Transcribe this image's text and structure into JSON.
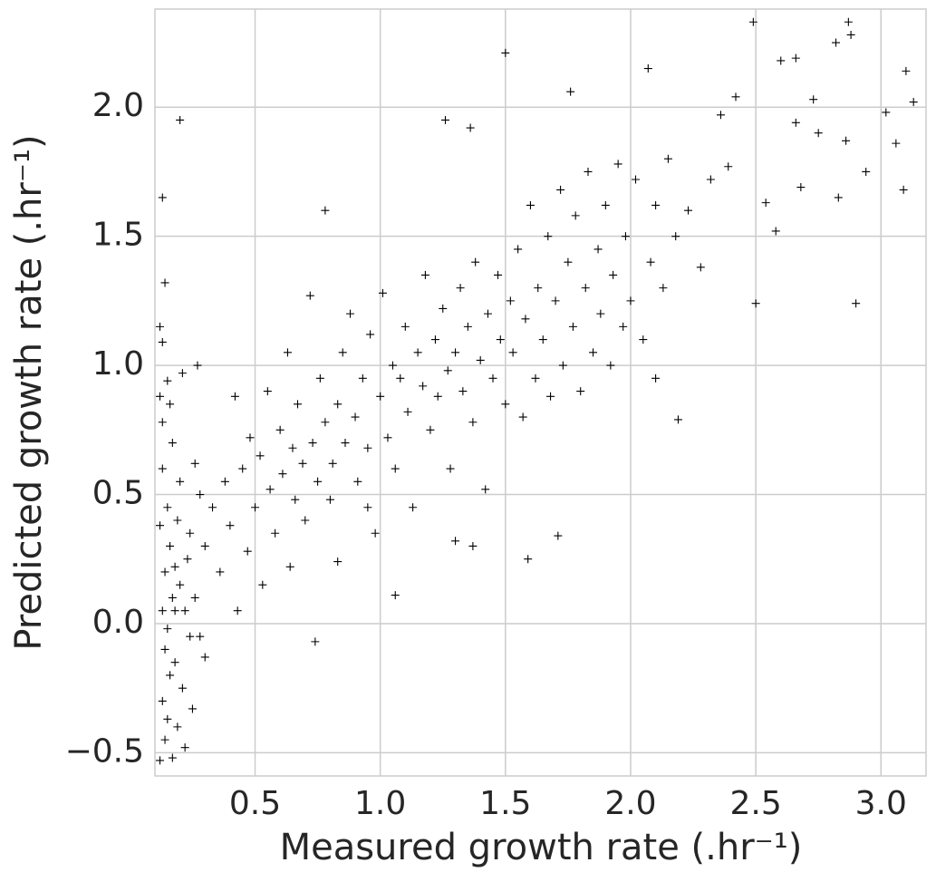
{
  "chart_data": {
    "type": "scatter",
    "x_label": "Measured growth rate (.hr⁻¹)",
    "y_label": "Predicted growth rate (.hr⁻¹)",
    "color": "#000000",
    "marker": "+",
    "grid": true,
    "xlim": [
      0.1,
      3.18
    ],
    "ylim": [
      -0.59,
      2.38
    ],
    "xticks": [
      0.5,
      {
        "value": 1.0,
        "label": "1.0"
      },
      1.5,
      {
        "value": 2.0,
        "label": "2.0"
      },
      2.5,
      {
        "value": 3.0,
        "label": "3.0"
      }
    ],
    "yticks": [
      {
        "value": -0.5,
        "label": "−0.5"
      },
      {
        "value": 0.0,
        "label": "0.0"
      },
      0.5,
      {
        "value": 1.0,
        "label": "1.0"
      },
      1.5,
      {
        "value": 2.0,
        "label": "2.0"
      }
    ],
    "x": [
      0.13,
      0.15,
      0.17,
      0.14,
      0.16,
      0.18,
      0.2,
      0.19,
      0.15,
      0.13,
      0.14,
      0.16,
      0.13,
      0.15,
      0.14,
      0.17,
      0.12,
      0.19,
      0.22,
      0.25,
      0.21,
      0.18,
      0.22,
      0.23,
      0.24,
      0.2,
      0.17,
      0.13,
      0.12,
      0.15,
      0.26,
      0.28,
      0.3,
      0.3,
      0.28,
      0.26,
      0.12,
      0.18,
      0.16,
      0.24,
      0.33,
      0.36,
      0.38,
      0.4,
      0.42,
      0.43,
      0.45,
      0.47,
      0.48,
      0.5,
      0.52,
      0.53,
      0.55,
      0.56,
      0.58,
      0.6,
      0.61,
      0.63,
      0.64,
      0.66,
      0.67,
      0.69,
      0.7,
      0.72,
      0.73,
      0.75,
      0.76,
      0.78,
      0.8,
      0.81,
      0.83,
      0.85,
      0.86,
      0.88,
      0.9,
      0.91,
      0.93,
      0.95,
      0.96,
      0.98,
      1.0,
      1.01,
      1.03,
      1.05,
      1.06,
      1.08,
      1.1,
      1.11,
      1.13,
      1.15,
      1.17,
      1.18,
      1.2,
      1.22,
      1.23,
      1.25,
      1.27,
      1.28,
      1.3,
      1.32,
      1.33,
      1.35,
      1.37,
      1.38,
      1.4,
      1.42,
      1.43,
      1.45,
      1.47,
      1.48,
      1.5,
      1.52,
      1.53,
      1.55,
      1.57,
      1.58,
      1.6,
      1.62,
      1.63,
      1.65,
      1.67,
      1.68,
      1.7,
      1.72,
      1.73,
      1.75,
      1.77,
      1.78,
      1.8,
      1.82,
      1.83,
      1.85,
      1.87,
      1.88,
      1.9,
      1.92,
      1.93,
      1.95,
      1.97,
      1.98,
      2.0,
      2.02,
      2.05,
      2.08,
      2.1,
      2.13,
      2.15,
      2.18,
      0.65,
      0.95,
      0.13,
      0.2,
      0.12,
      0.14,
      0.13,
      0.21,
      0.27,
      0.78,
      0.74,
      1.5,
      1.26,
      1.36,
      1.76,
      2.07,
      2.49,
      2.87,
      2.88,
      2.82,
      2.6,
      2.66,
      3.1,
      3.13,
      3.02,
      2.9,
      2.5,
      2.28,
      2.19,
      2.1,
      1.71,
      1.59,
      1.06,
      1.3,
      1.37,
      0.83,
      2.42,
      2.73,
      2.54,
      2.58,
      2.68,
      2.83,
      2.94,
      3.06,
      3.09,
      2.86,
      2.75,
      2.36,
      2.39,
      2.32,
      2.23,
      2.66
    ],
    "values": [
      0.05,
      -0.02,
      0.1,
      0.2,
      0.3,
      0.22,
      0.15,
      0.4,
      0.45,
      0.6,
      -0.1,
      -0.2,
      -0.3,
      -0.37,
      -0.45,
      -0.52,
      -0.53,
      -0.4,
      -0.48,
      -0.33,
      -0.25,
      -0.15,
      0.05,
      0.25,
      0.35,
      0.55,
      0.7,
      0.78,
      0.88,
      0.94,
      0.1,
      0.5,
      0.3,
      -0.13,
      -0.05,
      0.62,
      0.38,
      0.05,
      0.85,
      -0.05,
      0.45,
      0.2,
      0.55,
      0.38,
      0.88,
      0.05,
      0.6,
      0.28,
      0.72,
      0.45,
      0.65,
      0.15,
      0.9,
      0.52,
      0.35,
      0.75,
      0.58,
      1.05,
      0.22,
      0.48,
      0.85,
      0.62,
      0.4,
      1.27,
      0.7,
      0.55,
      0.95,
      0.78,
      0.48,
      0.62,
      0.85,
      1.05,
      0.7,
      1.2,
      0.8,
      0.55,
      0.95,
      0.68,
      1.12,
      0.35,
      0.88,
      1.28,
      0.72,
      1.0,
      0.6,
      0.95,
      1.15,
      0.82,
      0.45,
      1.05,
      0.92,
      1.35,
      0.75,
      1.1,
      0.88,
      1.22,
      0.98,
      0.6,
      1.05,
      1.3,
      0.9,
      1.15,
      0.78,
      1.4,
      1.02,
      0.52,
      1.2,
      0.95,
      1.35,
      1.1,
      0.85,
      1.25,
      1.05,
      1.45,
      0.8,
      1.18,
      1.62,
      0.95,
      1.3,
      1.1,
      1.5,
      0.88,
      1.25,
      1.68,
      1.0,
      1.4,
      1.15,
      1.58,
      0.9,
      1.3,
      1.75,
      1.05,
      1.45,
      1.2,
      1.62,
      1.0,
      1.35,
      1.78,
      1.15,
      1.5,
      1.25,
      1.72,
      1.1,
      1.4,
      1.62,
      1.3,
      1.8,
      1.5,
      0.68,
      0.45,
      1.65,
      1.95,
      1.15,
      1.32,
      1.09,
      0.97,
      1.0,
      1.6,
      -0.07,
      2.21,
      1.95,
      1.92,
      2.06,
      2.15,
      2.33,
      2.33,
      2.28,
      2.25,
      2.18,
      2.19,
      2.14,
      2.02,
      1.98,
      1.24,
      1.24,
      1.38,
      0.79,
      0.95,
      0.34,
      0.25,
      0.11,
      0.32,
      0.3,
      0.24,
      2.04,
      2.03,
      1.63,
      1.52,
      1.69,
      1.65,
      1.75,
      1.86,
      1.68,
      1.87,
      1.9,
      1.97,
      1.77,
      1.72,
      1.6,
      1.94
    ]
  }
}
